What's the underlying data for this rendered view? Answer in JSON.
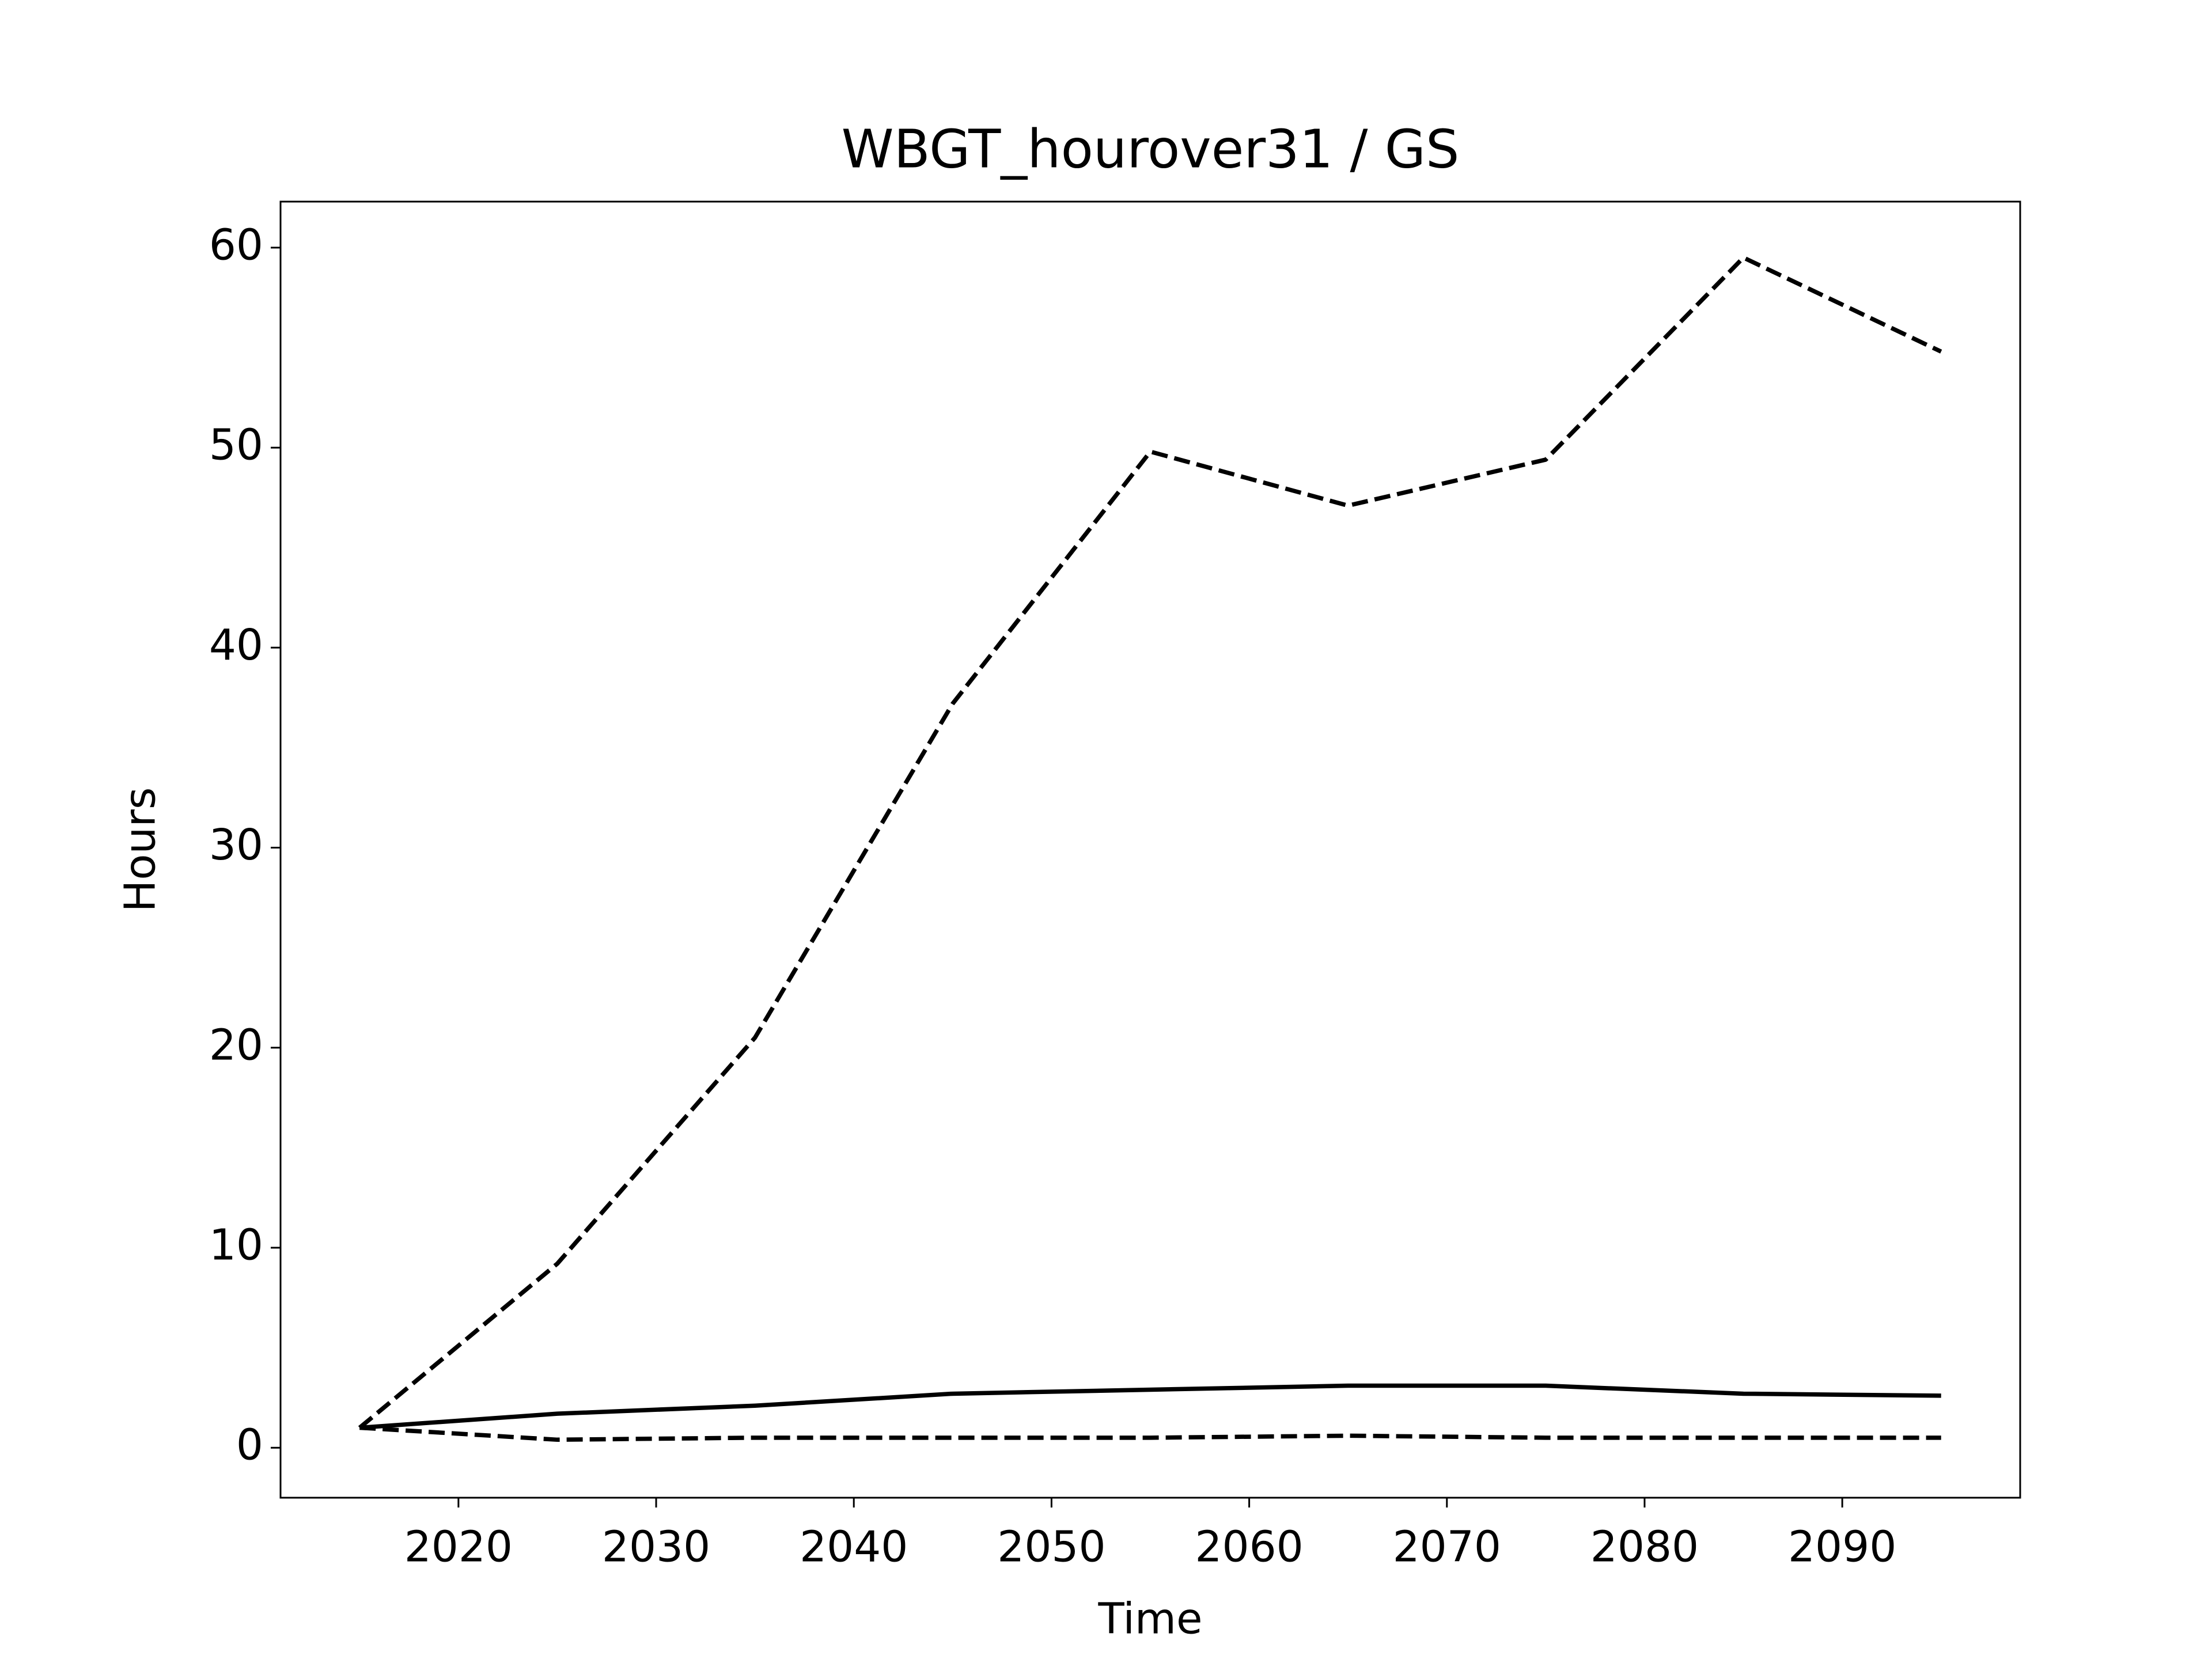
{
  "chart_data": {
    "type": "line",
    "title": "WBGT_hourover31 / GS",
    "xlabel": "Time",
    "ylabel": "Hours",
    "x": [
      2015,
      2025,
      2035,
      2045,
      2055,
      2065,
      2075,
      2085,
      2095
    ],
    "series": [
      {
        "color": "#000000",
        "style": "dashed",
        "values": [
          1,
          9.2,
          20.5,
          37.2,
          49.8,
          47.1,
          49.4,
          59.5,
          54.8
        ]
      },
      {
        "color": "#000000",
        "style": "solid",
        "values": [
          1,
          1.7,
          2.1,
          2.7,
          2.9,
          3.1,
          3.1,
          2.7,
          2.6
        ]
      },
      {
        "color": "#000000",
        "style": "dashed",
        "values": [
          1,
          0.4,
          0.5,
          0.5,
          0.5,
          0.6,
          0.5,
          0.5,
          0.5
        ]
      }
    ],
    "xlim": [
      2011,
      2099
    ],
    "xticks": [
      2020,
      2030,
      2040,
      2050,
      2060,
      2070,
      2080,
      2090
    ],
    "ylim": [
      -2.5,
      62.3
    ],
    "yticks": [
      0,
      10,
      20,
      30,
      40,
      50,
      60
    ],
    "grid": false
  }
}
